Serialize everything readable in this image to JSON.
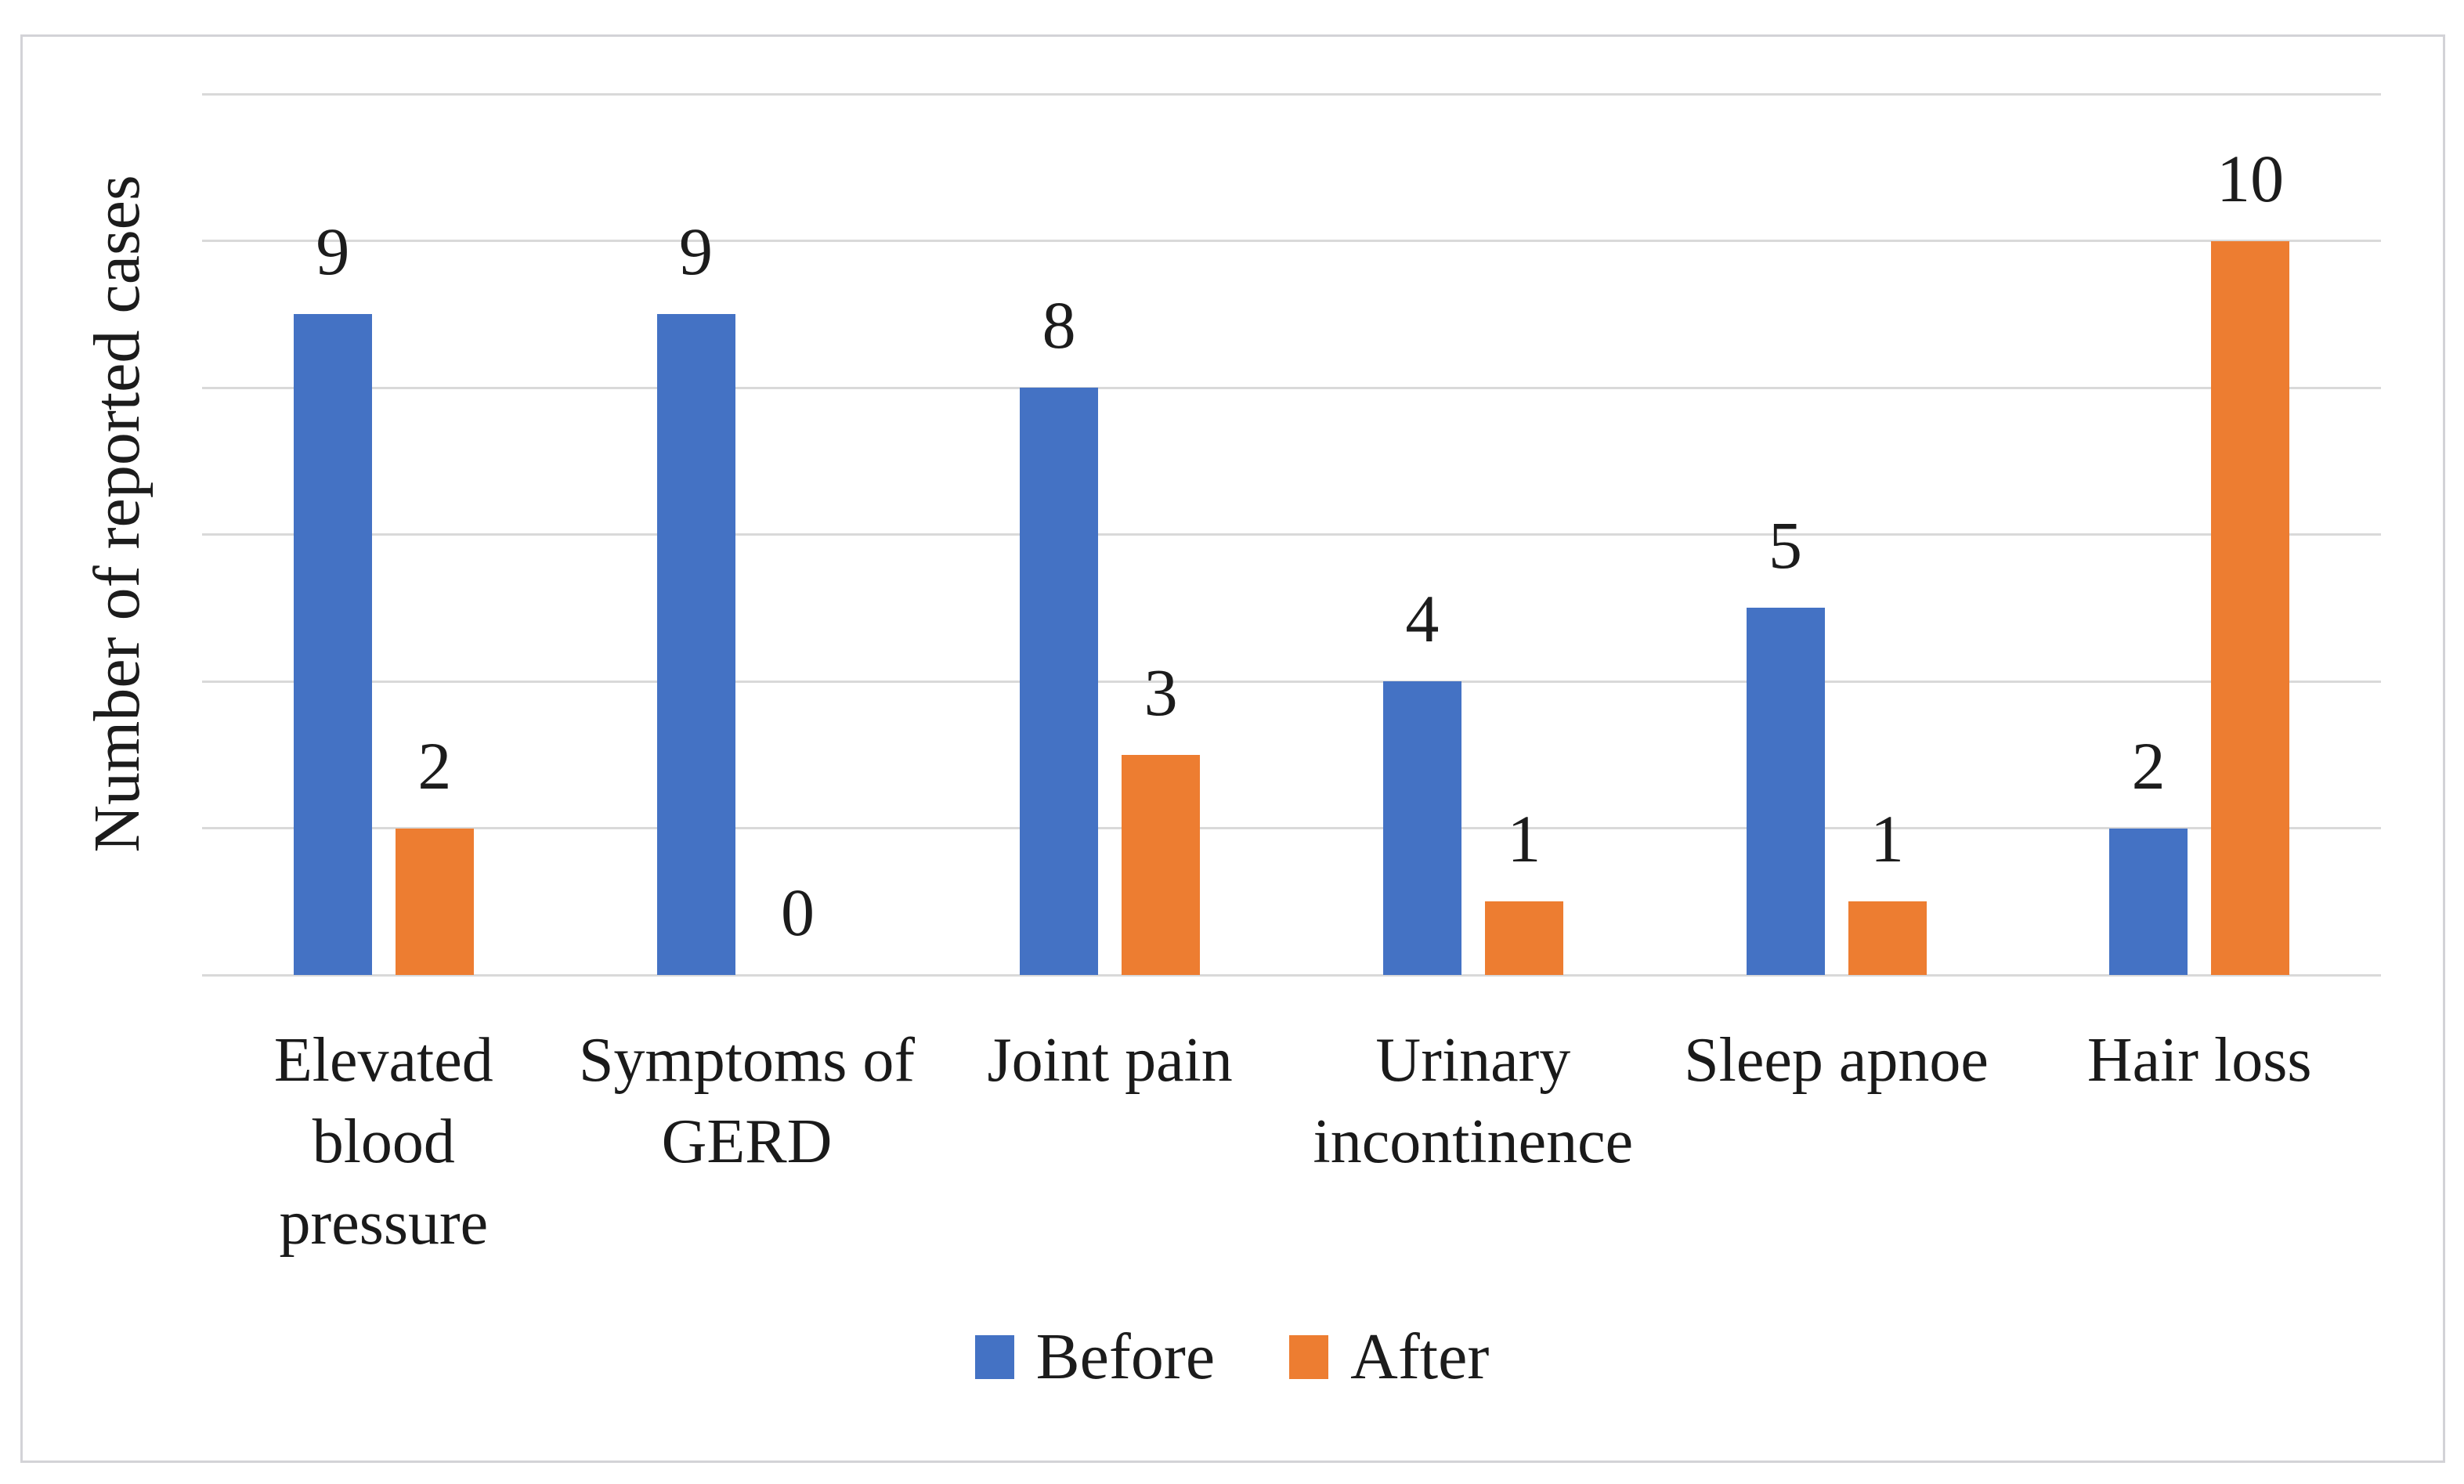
{
  "figure": {
    "background": "#FFFFFF",
    "frame_border_color": "#D3D3D7"
  },
  "chart_data": {
    "type": "bar",
    "title": "",
    "xlabel": "",
    "ylabel": "Number of reported cases",
    "categories": [
      "Elevated blood pressure",
      "Symptoms of GERD",
      "Joint pain",
      "Urinary incontinence",
      "Sleep apnoe",
      "Hair loss"
    ],
    "category_lines": [
      [
        "Elevated",
        "blood",
        "pressure"
      ],
      [
        "Symptoms of",
        "GERD"
      ],
      [
        "Joint pain"
      ],
      [
        "Urinary",
        "incontinence"
      ],
      [
        "Sleep apnoe"
      ],
      [
        "Hair loss"
      ]
    ],
    "series": [
      {
        "name": "Before",
        "color": "#4472C4",
        "values": [
          9,
          9,
          8,
          4,
          5,
          2
        ]
      },
      {
        "name": "After",
        "color": "#ED7D31",
        "values": [
          2,
          0,
          3,
          1,
          1,
          10
        ]
      }
    ],
    "ylim": [
      0,
      12
    ],
    "gridline_step": 2,
    "grid": true,
    "gridline_color": "#D9D9D9",
    "data_labels": true,
    "data_label_color": "#1C1C1C",
    "legend_position": "bottom"
  }
}
